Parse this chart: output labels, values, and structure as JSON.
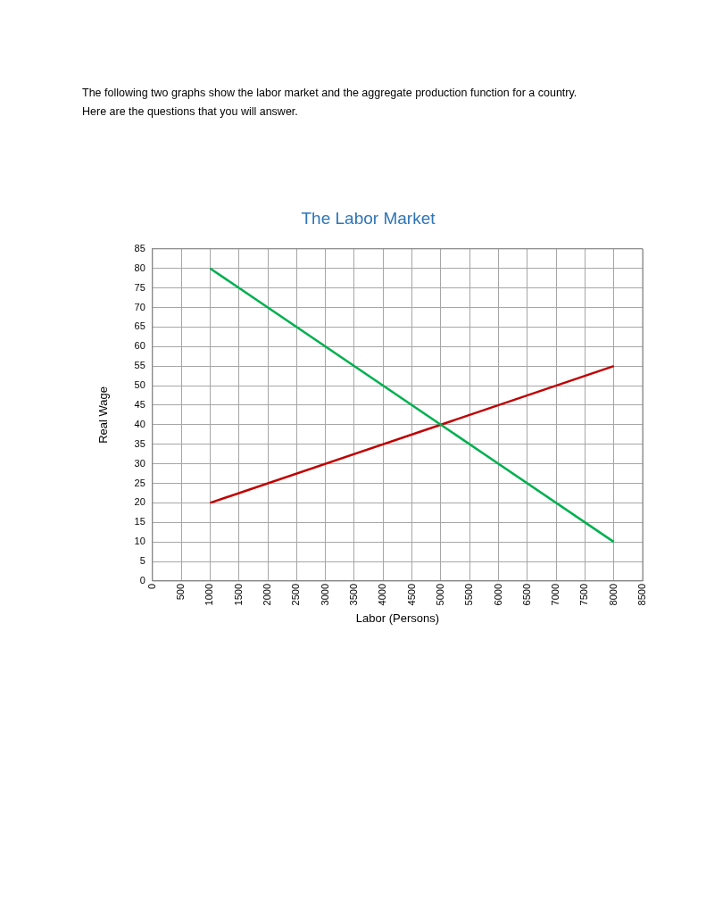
{
  "chart_data": {
    "type": "line",
    "title": "The Labor Market",
    "xlabel": "Labor (Persons)",
    "ylabel": "Real Wage",
    "annotations": [
      "The following two graphs show the labor market and the aggregate production function for a country.",
      "Here are the questions that you will answer."
    ],
    "x": [
      1000,
      8000
    ],
    "series": [
      {
        "color": "#00b050",
        "values": [
          80,
          10
        ]
      },
      {
        "color": "#c00000",
        "values": [
          20,
          55
        ]
      }
    ],
    "xlim": [
      0,
      8500
    ],
    "xticks": [
      0,
      500,
      1000,
      1500,
      2000,
      2500,
      3000,
      3500,
      4000,
      4500,
      5000,
      5500,
      6000,
      6500,
      7000,
      7500,
      8000,
      8500
    ],
    "ylim": [
      0,
      85
    ],
    "yticks": [
      0,
      5,
      10,
      15,
      20,
      25,
      30,
      35,
      40,
      45,
      50,
      55,
      60,
      65,
      70,
      75,
      80,
      85
    ],
    "grid": true,
    "marker": "none",
    "line_style": "solid",
    "legend": false
  }
}
